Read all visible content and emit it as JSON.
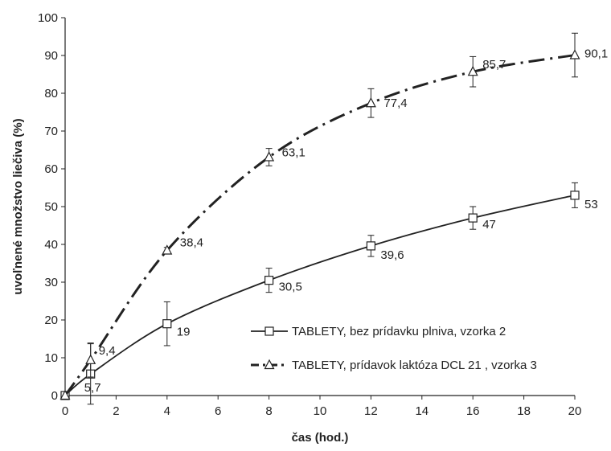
{
  "chart_data": {
    "type": "line",
    "title": "",
    "xlabel": "čas (hod.)",
    "ylabel": "uvoľnené množstvo liečiva (%)",
    "xlim": [
      0,
      20
    ],
    "ylim": [
      0,
      100
    ],
    "xticks": [
      "0",
      "2",
      "4",
      "6",
      "8",
      "10",
      "12",
      "14",
      "16",
      "18",
      "20"
    ],
    "yticks": [
      "0",
      "10",
      "20",
      "30",
      "40",
      "50",
      "60",
      "70",
      "80",
      "90",
      "100"
    ],
    "grid": false,
    "legend_position": "bottom-right",
    "series": [
      {
        "name": "TABLETY, bez prídavku plniva, vzorka 2",
        "marker": "square",
        "line_style": "solid",
        "x": [
          0,
          1,
          4,
          8,
          12,
          16,
          20
        ],
        "y": [
          0,
          5.7,
          19,
          30.5,
          39.6,
          47,
          53
        ],
        "labels": [
          "",
          "5,7",
          "19",
          "30,5",
          "39,6",
          "47",
          "53"
        ],
        "error": [
          0,
          8,
          5.8,
          3.2,
          2.8,
          3,
          3.3
        ]
      },
      {
        "name": "TABLETY, prídavok laktóza DCL 21 , vzorka 3",
        "marker": "triangle",
        "line_style": "dash-dot",
        "x": [
          0,
          1,
          4,
          8,
          12,
          16,
          20
        ],
        "y": [
          0,
          9.4,
          38.4,
          63.1,
          77.4,
          85.7,
          90.1
        ],
        "labels": [
          "",
          "9,4",
          "38,4",
          "63,1",
          "77,4",
          "85,7",
          "90,1"
        ],
        "error": [
          0,
          4.5,
          0.8,
          2.3,
          3.8,
          4,
          5.8
        ]
      }
    ]
  }
}
